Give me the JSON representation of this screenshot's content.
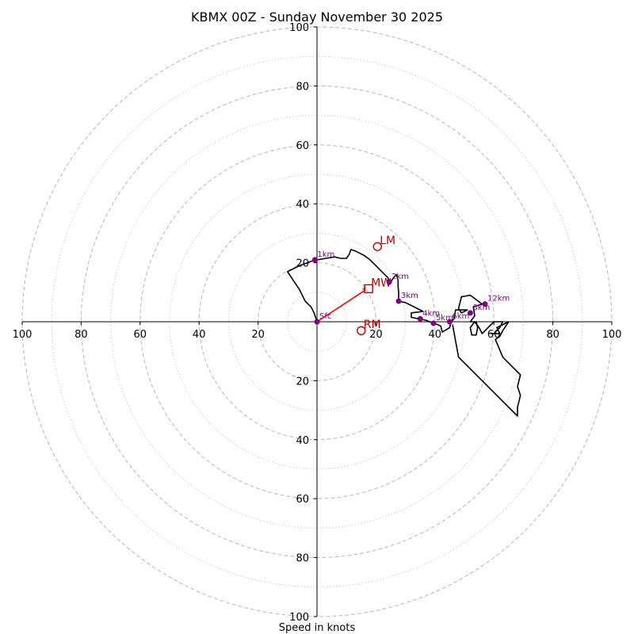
{
  "chart_data": {
    "type": "hodograph",
    "title": "KBMX 00Z - Sunday November 30 2025",
    "xlabel": "Speed in knots",
    "units": "knots",
    "axis_limit": 100,
    "tick_labels": {
      "x": [
        "100",
        "80",
        "60",
        "40",
        "20",
        "20",
        "40",
        "60",
        "80",
        "100"
      ],
      "y": [
        "100",
        "80",
        "60",
        "40",
        "20",
        "20",
        "40",
        "60",
        "80",
        "100"
      ]
    },
    "major_rings": [
      20,
      40,
      60,
      80,
      100
    ],
    "minor_rings": [
      10,
      30,
      50,
      70,
      90
    ],
    "trace_color": "#000000",
    "trace": [
      [
        0,
        0
      ],
      [
        -1,
        3
      ],
      [
        -2,
        5
      ],
      [
        -3,
        6
      ],
      [
        -4,
        7
      ],
      [
        -5,
        9
      ],
      [
        -6,
        11
      ],
      [
        -8,
        14
      ],
      [
        -10,
        17
      ],
      [
        -6,
        19
      ],
      [
        -2,
        20.5
      ],
      [
        0,
        21
      ],
      [
        3,
        21.5
      ],
      [
        6,
        22
      ],
      [
        8,
        21.5
      ],
      [
        10,
        21.5
      ],
      [
        11,
        23
      ],
      [
        11.5,
        24.5
      ],
      [
        13,
        24
      ],
      [
        16,
        22.5
      ],
      [
        18,
        21
      ],
      [
        20,
        19
      ],
      [
        22,
        17
      ],
      [
        24,
        15
      ],
      [
        24.5,
        14
      ],
      [
        25,
        13.5
      ],
      [
        26,
        15
      ],
      [
        27,
        16
      ],
      [
        27.5,
        14
      ],
      [
        27.5,
        12
      ],
      [
        27.7,
        10
      ],
      [
        27.7,
        7
      ],
      [
        30,
        6.5
      ],
      [
        33,
        5
      ],
      [
        36,
        3.5
      ],
      [
        32,
        3
      ],
      [
        32,
        1.5
      ],
      [
        34.5,
        1
      ],
      [
        37,
        0.5
      ],
      [
        39.5,
        -0.5
      ],
      [
        41,
        -1
      ],
      [
        42,
        -1.5
      ],
      [
        42.5,
        -3.5
      ],
      [
        45,
        -2
      ],
      [
        45.5,
        0
      ],
      [
        46.5,
        1
      ],
      [
        47,
        4
      ],
      [
        51,
        4
      ],
      [
        49,
        3
      ],
      [
        48,
        4.5
      ],
      [
        49,
        8.5
      ],
      [
        52,
        9
      ],
      [
        56,
        6
      ],
      [
        53,
        5
      ],
      [
        53.5,
        2
      ],
      [
        52,
        0
      ],
      [
        54,
        0
      ],
      [
        54.5,
        -2
      ],
      [
        54,
        -4.5
      ],
      [
        52.5,
        -4.5
      ],
      [
        52,
        -2
      ],
      [
        53.5,
        0
      ],
      [
        55,
        -2
      ],
      [
        56,
        -4
      ],
      [
        59,
        -1
      ],
      [
        60,
        0
      ],
      [
        61,
        0
      ],
      [
        62,
        0
      ],
      [
        63,
        0
      ],
      [
        62,
        -2
      ],
      [
        60,
        -4
      ],
      [
        59,
        -4
      ],
      [
        62,
        -4
      ],
      [
        61,
        -2
      ],
      [
        65,
        0
      ],
      [
        63,
        -3
      ],
      [
        62,
        -5
      ],
      [
        60.5,
        -6
      ],
      [
        63,
        -12
      ],
      [
        69,
        -18
      ],
      [
        68,
        -22
      ],
      [
        69,
        -25
      ],
      [
        68,
        -29
      ],
      [
        68,
        -32
      ],
      [
        48,
        -12
      ],
      [
        46,
        -1
      ]
    ],
    "altitude_points": [
      {
        "label": "Sfc",
        "u": 0,
        "v": 0
      },
      {
        "label": "1km",
        "u": -0.7,
        "v": 21
      },
      {
        "label": "2km",
        "u": 24.5,
        "v": 13.5
      },
      {
        "label": "3km",
        "u": 27.7,
        "v": 7
      },
      {
        "label": "4km",
        "u": 35,
        "v": 1
      },
      {
        "label": "5km",
        "u": 39.5,
        "v": -0.5
      },
      {
        "label": "6km",
        "u": 45,
        "v": 0
      },
      {
        "label": "8km",
        "u": 52,
        "v": 3
      },
      {
        "label": "12km",
        "u": 57,
        "v": 6
      }
    ],
    "altitude_color": "#800080",
    "storm_motions": {
      "color": "#c00000",
      "bunkers_left": {
        "label": "LM",
        "u": 20.5,
        "v": 25.5
      },
      "bunkers_right": {
        "label": "RM",
        "u": 15,
        "v": -3
      },
      "mean_wind": {
        "label": "MW",
        "u": 17.5,
        "v": 11.2
      }
    },
    "shear_vector": {
      "from": [
        0,
        0
      ],
      "to": [
        16,
        10.5
      ],
      "color": "#ff0000"
    }
  }
}
